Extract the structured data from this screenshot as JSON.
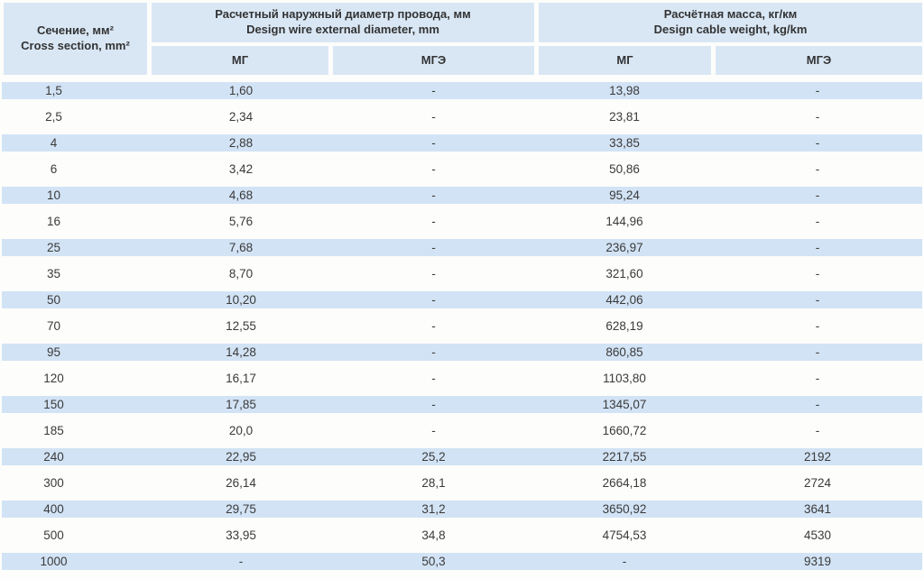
{
  "chart_data": {
    "type": "table",
    "corner_header": {
      "ru": "Сечение, мм²",
      "en": "Cross section, mm²"
    },
    "groups": [
      {
        "ru": "Расчетный наружный диаметр провода, мм",
        "en": "Design wire external diameter, mm"
      },
      {
        "ru": "Расчётная масса, кг/км",
        "en": "Design cable weight, kg/km"
      }
    ],
    "subheaders": [
      "МГ",
      "МГЭ",
      "МГ",
      "МГЭ"
    ],
    "columns": [
      "Cross section, mm2",
      "Diameter МГ",
      "Diameter МГЭ",
      "Weight МГ",
      "Weight МГЭ"
    ],
    "rows": [
      [
        "1,5",
        "1,60",
        "-",
        "13,98",
        "-"
      ],
      [
        "2,5",
        "2,34",
        "-",
        "23,81",
        "-"
      ],
      [
        "4",
        "2,88",
        "-",
        "33,85",
        "-"
      ],
      [
        "6",
        "3,42",
        "-",
        "50,86",
        "-"
      ],
      [
        "10",
        "4,68",
        "-",
        "95,24",
        "-"
      ],
      [
        "16",
        "5,76",
        "-",
        "144,96",
        "-"
      ],
      [
        "25",
        "7,68",
        "-",
        "236,97",
        "-"
      ],
      [
        "35",
        "8,70",
        "-",
        "321,60",
        "-"
      ],
      [
        "50",
        "10,20",
        "-",
        "442,06",
        "-"
      ],
      [
        "70",
        "12,55",
        "-",
        "628,19",
        "-"
      ],
      [
        "95",
        "14,28",
        "-",
        "860,85",
        "-"
      ],
      [
        "120",
        "16,17",
        "-",
        "1103,80",
        "-"
      ],
      [
        "150",
        "17,85",
        "-",
        "1345,07",
        "-"
      ],
      [
        "185",
        "20,0",
        "-",
        "1660,72",
        "-"
      ],
      [
        "240",
        "22,95",
        "25,2",
        "2217,55",
        "2192"
      ],
      [
        "300",
        "26,14",
        "28,1",
        "2664,18",
        "2724"
      ],
      [
        "400",
        "29,75",
        "31,2",
        "3650,92",
        "3641"
      ],
      [
        "500",
        "33,95",
        "34,8",
        "4754,53",
        "4530"
      ],
      [
        "1000",
        "-",
        "50,3",
        "-",
        "9319"
      ]
    ],
    "layout": {
      "striped_rows": "odd rows (1st, 3rd, ...) highlighted",
      "grid": "off"
    }
  },
  "colors": {
    "header_bg": "#d9e7f5",
    "stripe_bg": "#d2e3f5",
    "page_bg": "#fdfdfb",
    "text": "#3a3a3a"
  }
}
